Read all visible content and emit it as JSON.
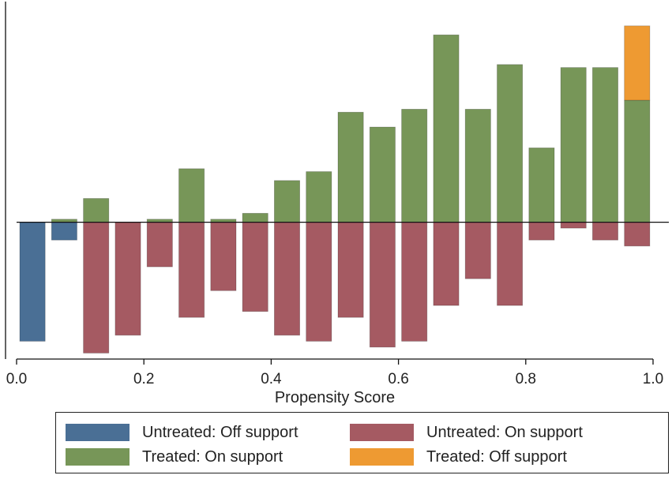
{
  "chart_data": {
    "type": "bar",
    "title": "",
    "xlabel": "Propensity Score",
    "ylabel": "",
    "xlim": [
      0.0,
      1.0
    ],
    "xticks": [
      "0.0",
      "0.2",
      "0.4",
      "0.6",
      "0.8",
      "1.0"
    ],
    "ylim": [
      -46,
      71
    ],
    "notes": "Mirrored histogram: treated counts above zero, untreated counts below zero (approximate units, no y-axis labels shown).",
    "bin_width": 0.05,
    "series": [
      {
        "name": "Untreated: Off support",
        "color": "#4a6f95",
        "direction": "down",
        "bars": [
          {
            "x": 0.025,
            "value": 40
          },
          {
            "x": 0.075,
            "value": 6
          }
        ]
      },
      {
        "name": "Untreated: On support",
        "color": "#a55a62",
        "direction": "down",
        "bars": [
          {
            "x": 0.125,
            "value": 44
          },
          {
            "x": 0.175,
            "value": 38
          },
          {
            "x": 0.225,
            "value": 15
          },
          {
            "x": 0.275,
            "value": 32
          },
          {
            "x": 0.325,
            "value": 23
          },
          {
            "x": 0.375,
            "value": 30
          },
          {
            "x": 0.425,
            "value": 38
          },
          {
            "x": 0.475,
            "value": 40
          },
          {
            "x": 0.525,
            "value": 32
          },
          {
            "x": 0.575,
            "value": 42
          },
          {
            "x": 0.625,
            "value": 40
          },
          {
            "x": 0.675,
            "value": 28
          },
          {
            "x": 0.725,
            "value": 19
          },
          {
            "x": 0.775,
            "value": 28
          },
          {
            "x": 0.825,
            "value": 6
          },
          {
            "x": 0.875,
            "value": 2
          },
          {
            "x": 0.925,
            "value": 6
          },
          {
            "x": 0.975,
            "value": 8
          }
        ]
      },
      {
        "name": "Treated: On support",
        "color": "#779658",
        "direction": "up",
        "bars": [
          {
            "x": 0.075,
            "value": 1
          },
          {
            "x": 0.125,
            "value": 8
          },
          {
            "x": 0.225,
            "value": 1
          },
          {
            "x": 0.275,
            "value": 18
          },
          {
            "x": 0.325,
            "value": 1
          },
          {
            "x": 0.375,
            "value": 3
          },
          {
            "x": 0.425,
            "value": 14
          },
          {
            "x": 0.475,
            "value": 17
          },
          {
            "x": 0.525,
            "value": 37
          },
          {
            "x": 0.575,
            "value": 32
          },
          {
            "x": 0.625,
            "value": 38
          },
          {
            "x": 0.675,
            "value": 63
          },
          {
            "x": 0.725,
            "value": 38
          },
          {
            "x": 0.775,
            "value": 53
          },
          {
            "x": 0.825,
            "value": 25
          },
          {
            "x": 0.875,
            "value": 52
          },
          {
            "x": 0.925,
            "value": 52
          },
          {
            "x": 0.975,
            "value": 41
          }
        ]
      },
      {
        "name": "Treated: Off support",
        "color": "#ee9a32",
        "direction": "up",
        "stacked_on": "Treated: On support",
        "bars": [
          {
            "x": 0.975,
            "value": 25
          }
        ]
      }
    ]
  },
  "legend": [
    {
      "label": "Untreated: Off support",
      "color": "#4a6f95"
    },
    {
      "label": "Untreated: On support",
      "color": "#a55a62"
    },
    {
      "label": "Treated: On support",
      "color": "#779658"
    },
    {
      "label": "Treated: Off support",
      "color": "#ee9a32"
    }
  ]
}
